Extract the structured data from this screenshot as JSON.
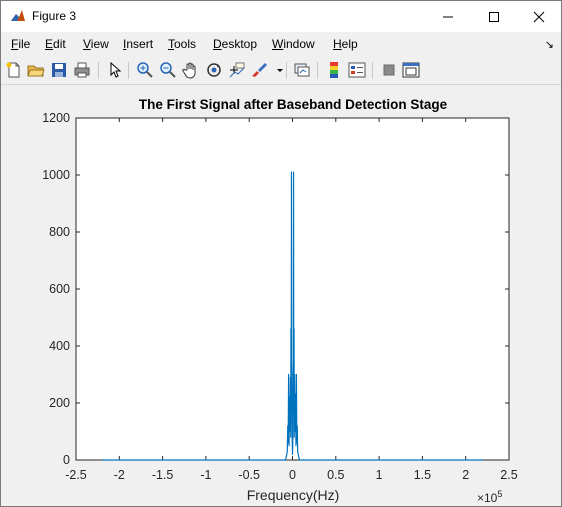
{
  "window": {
    "title": "Figure 3",
    "app_icon": "matlab-figure-icon"
  },
  "menu": [
    "File",
    "Edit",
    "View",
    "Insert",
    "Tools",
    "Desktop",
    "Window",
    "Help"
  ],
  "toolbar": {
    "tools": [
      "new-figure-icon",
      "open-file-icon",
      "save-icon",
      "print-icon",
      "pointer-icon",
      "zoom-in-icon",
      "zoom-out-icon",
      "pan-hand-icon",
      "rotate-3d-icon",
      "data-cursor-icon",
      "brush-icon",
      "link-plot-icon",
      "insert-colorbar-icon",
      "insert-legend-icon",
      "hide-plot-tools-icon",
      "show-plot-tools-icon"
    ]
  },
  "colors": {
    "line": "#0072BD",
    "axes_bg": "#ffffff",
    "figure_bg": "#f0f0f0"
  },
  "chart_data": {
    "type": "line",
    "title": "The First Signal after Baseband Detection Stage",
    "xlabel": "Frequency(Hz)",
    "ylabel": "",
    "x_exponent_label": "×10",
    "x_exponent_power": "5",
    "xlim": [
      -250000,
      250000
    ],
    "ylim": [
      0,
      1200
    ],
    "xticks": [
      "-2.5",
      "-2",
      "-1.5",
      "-1",
      "-0.5",
      "0",
      "0.5",
      "1",
      "1.5",
      "2",
      "2.5"
    ],
    "yticks": [
      "0",
      "200",
      "400",
      "600",
      "800",
      "1000",
      "1200"
    ],
    "grid": false,
    "series": [
      {
        "x": [
          -220000,
          -8000,
          -6000,
          -5500,
          -5000,
          -4500,
          -4000,
          -3500,
          -3000,
          -2500,
          -2000,
          -1800,
          -1500,
          -1200,
          -1000,
          -800,
          -500,
          -300,
          0,
          300,
          500,
          800,
          1000,
          1200,
          1500,
          1800,
          2000,
          2500,
          3000,
          3500,
          4000,
          4500,
          5000,
          5500,
          6000,
          8000,
          220000
        ],
        "y": [
          0,
          0,
          30,
          120,
          60,
          300,
          50,
          220,
          100,
          290,
          80,
          460,
          200,
          1010,
          350,
          300,
          150,
          60,
          20,
          60,
          150,
          300,
          350,
          1010,
          200,
          460,
          80,
          300,
          100,
          230,
          50,
          300,
          60,
          120,
          30,
          0,
          0
        ]
      }
    ]
  }
}
